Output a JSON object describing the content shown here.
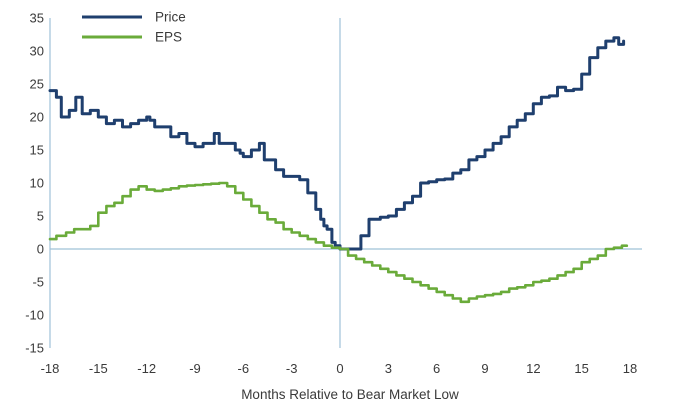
{
  "chart_data": {
    "type": "line",
    "xlabel": "Months Relative to Bear Market Low",
    "ylabel": "",
    "xlim": [
      -18,
      18
    ],
    "ylim": [
      -15,
      35
    ],
    "xticks": [
      -18,
      -15,
      -12,
      -9,
      -6,
      -3,
      0,
      3,
      6,
      9,
      12,
      15,
      18
    ],
    "yticks": [
      35,
      30,
      25,
      20,
      15,
      10,
      5,
      0,
      -5,
      -10,
      -15
    ],
    "grid": false,
    "legend_position": "top-left",
    "series": [
      {
        "name": "Price",
        "color": "#1f3f6e",
        "x": [
          -18,
          -17.6,
          -17.3,
          -16.8,
          -16.4,
          -16.0,
          -15.5,
          -15.0,
          -14.5,
          -14.0,
          -13.5,
          -13.0,
          -12.5,
          -12.0,
          -11.8,
          -11.5,
          -11.0,
          -10.5,
          -10.0,
          -9.5,
          -9.0,
          -8.5,
          -8.0,
          -7.8,
          -7.5,
          -7.0,
          -6.5,
          -6.2,
          -6.0,
          -5.5,
          -5.0,
          -4.7,
          -4.4,
          -4.0,
          -3.5,
          -3.0,
          -2.5,
          -2.0,
          -1.5,
          -1.2,
          -1.0,
          -0.8,
          -0.5,
          -0.3,
          0.0,
          0.5,
          1.0,
          1.3,
          1.8,
          2.5,
          3.0,
          3.5,
          4.0,
          4.5,
          5.0,
          5.5,
          6.0,
          6.5,
          7.0,
          7.5,
          8.0,
          8.5,
          9.0,
          9.5,
          10.0,
          10.5,
          11.0,
          11.5,
          12.0,
          12.5,
          13.0,
          13.5,
          14.0,
          14.5,
          15.0,
          15.5,
          16.0,
          16.5,
          17.0,
          17.3,
          17.6
        ],
        "y": [
          24,
          23,
          20,
          21,
          23,
          20.5,
          21,
          20,
          19,
          19.5,
          18.5,
          19,
          19.5,
          20,
          19.5,
          18.5,
          18.5,
          17,
          17.5,
          16,
          15.5,
          16,
          16,
          17.5,
          16,
          16,
          15,
          14.5,
          14,
          15,
          16,
          13.5,
          13.5,
          12,
          11,
          11,
          10.5,
          8.5,
          6,
          4.5,
          3.5,
          3,
          1,
          0.5,
          0,
          0,
          0,
          2,
          4.5,
          4.8,
          5,
          6,
          7,
          8,
          10,
          10.2,
          10.5,
          10.6,
          11.5,
          12,
          13.5,
          14,
          15,
          16,
          17,
          18.5,
          19.5,
          20.5,
          22,
          23,
          23.2,
          24.5,
          24,
          24.2,
          26.5,
          29,
          30.5,
          31.5,
          32,
          31,
          31.5
        ]
      },
      {
        "name": "EPS",
        "color": "#6aab3a",
        "x": [
          -18,
          -17.6,
          -17.0,
          -16.5,
          -16.0,
          -15.5,
          -15.0,
          -14.5,
          -14.0,
          -13.5,
          -13.0,
          -12.5,
          -12.0,
          -11.5,
          -11.0,
          -10.5,
          -10.0,
          -9.5,
          -9.0,
          -8.5,
          -8.0,
          -7.5,
          -7.0,
          -6.5,
          -6.0,
          -5.5,
          -5.0,
          -4.5,
          -4.0,
          -3.5,
          -3.0,
          -2.5,
          -2.0,
          -1.5,
          -1.0,
          -0.5,
          0.0,
          0.5,
          1.0,
          1.5,
          2.0,
          2.5,
          3.0,
          3.5,
          4.0,
          4.5,
          5.0,
          5.5,
          6.0,
          6.5,
          7.0,
          7.5,
          8.0,
          8.5,
          9.0,
          9.5,
          10.0,
          10.5,
          11.0,
          11.5,
          12.0,
          12.5,
          13.0,
          13.5,
          14.0,
          14.5,
          15.0,
          15.5,
          16.0,
          16.5,
          17.0,
          17.5,
          17.8
        ],
        "y": [
          1.5,
          2,
          2.5,
          3,
          3,
          3.5,
          5.5,
          6.5,
          7,
          8,
          9,
          9.5,
          9,
          8.8,
          9,
          9.2,
          9.5,
          9.6,
          9.7,
          9.8,
          9.9,
          10,
          9.5,
          8.5,
          7.5,
          6.5,
          5.5,
          4.5,
          4,
          3,
          2.5,
          2,
          1.5,
          1,
          0.5,
          0.2,
          0,
          -1,
          -1.5,
          -2,
          -2.5,
          -3,
          -3.5,
          -4,
          -4.5,
          -5,
          -5.5,
          -6,
          -6.5,
          -7,
          -7.5,
          -8,
          -7.5,
          -7.2,
          -7,
          -6.8,
          -6.5,
          -6,
          -5.8,
          -5.5,
          -5,
          -4.8,
          -4.5,
          -4,
          -3.5,
          -3,
          -2,
          -1.5,
          -1,
          0,
          0.2,
          0.5,
          0.5
        ]
      }
    ]
  }
}
